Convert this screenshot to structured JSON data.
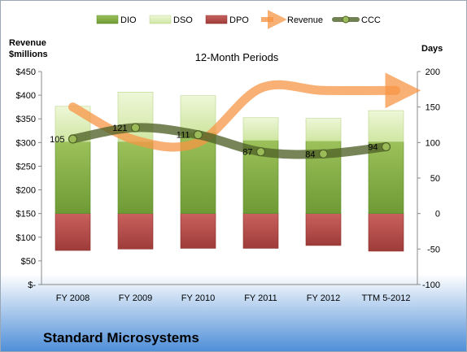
{
  "chart_data": {
    "type": "bar",
    "title": "12-Month Periods",
    "footer_title": "Standard Microsystems",
    "y_left_label_line1": "Revenue",
    "y_left_label_line2": "$millions",
    "y_right_label": "Days",
    "categories": [
      "FY 2008",
      "FY 2009",
      "FY 2010",
      "FY 2011",
      "FY 2012",
      "TTM 5-2012"
    ],
    "left_axis": {
      "min": 0,
      "max": 450,
      "step": 50,
      "tick_labels": [
        "$-",
        "$50",
        "$100",
        "$150",
        "$200",
        "$250",
        "$300",
        "$350",
        "$400",
        "$450"
      ]
    },
    "right_axis": {
      "min": -100,
      "max": 200,
      "step": 50,
      "tick_labels": [
        "-100",
        "-50",
        "0",
        "50",
        "100",
        "150",
        "200"
      ]
    },
    "legend": [
      "DIO",
      "DSO",
      "DPO",
      "Revenue",
      "CCC"
    ],
    "series": [
      {
        "name": "DIO",
        "axis": "right",
        "color": "#8fb24a",
        "values": [
          101,
          101,
          114,
          103,
          102,
          101
        ]
      },
      {
        "name": "DSO",
        "axis": "right",
        "color": "#d9edb0",
        "values": [
          50,
          70,
          52,
          32,
          32,
          44
        ]
      },
      {
        "name": "DPO",
        "axis": "right",
        "color": "#c0504d",
        "values": [
          -52,
          -50,
          -49,
          -49,
          -45,
          -53
        ]
      },
      {
        "name": "Revenue",
        "axis": "left",
        "color": "#f79646",
        "values": [
          375,
          305,
          300,
          415,
          410,
          410
        ]
      },
      {
        "name": "CCC",
        "axis": "right",
        "color": "#4f6228",
        "values": [
          105,
          121,
          111,
          87,
          84,
          94
        ],
        "labels": [
          "105",
          "121",
          "111",
          "87",
          "84",
          "94"
        ]
      }
    ],
    "grid": false,
    "legend_position": "top"
  }
}
